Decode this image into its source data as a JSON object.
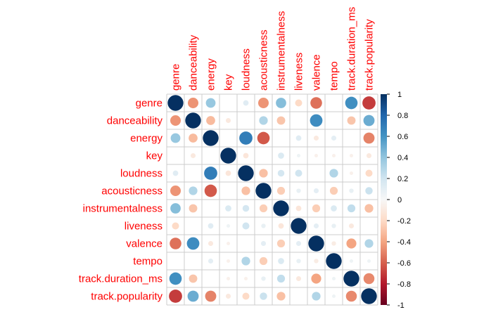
{
  "chart_data": {
    "type": "heatmap",
    "variables": [
      "genre",
      "danceability",
      "energy",
      "key",
      "loudness",
      "acousticness",
      "instrumentalness",
      "liveness",
      "valence",
      "tempo",
      "track.duration_ms",
      "track.popularity"
    ],
    "matrix": [
      [
        1.0,
        -0.45,
        0.38,
        0.0,
        0.12,
        -0.45,
        0.43,
        -0.2,
        -0.55,
        0.0,
        0.62,
        -0.7
      ],
      [
        -0.45,
        1.0,
        -0.32,
        -0.1,
        0.0,
        0.3,
        -0.28,
        0.0,
        0.63,
        0.0,
        -0.28,
        0.5
      ],
      [
        0.38,
        -0.32,
        1.0,
        0.0,
        0.7,
        -0.62,
        0.0,
        0.12,
        -0.1,
        0.1,
        0.0,
        -0.5
      ],
      [
        0.0,
        -0.1,
        0.0,
        1.0,
        -0.12,
        0.0,
        0.15,
        0.05,
        -0.05,
        -0.05,
        -0.05,
        -0.1
      ],
      [
        0.12,
        0.0,
        0.7,
        -0.12,
        1.0,
        -0.3,
        0.18,
        0.2,
        0.0,
        0.3,
        -0.05,
        -0.2
      ],
      [
        -0.45,
        0.3,
        -0.62,
        0.0,
        -0.3,
        1.0,
        -0.25,
        0.08,
        0.1,
        -0.25,
        0.08,
        0.22
      ],
      [
        0.43,
        -0.28,
        0.0,
        0.15,
        0.18,
        -0.25,
        1.0,
        -0.12,
        -0.25,
        0.15,
        0.25,
        -0.3
      ],
      [
        -0.2,
        0.0,
        0.12,
        0.05,
        0.2,
        0.08,
        -0.12,
        1.0,
        0.1,
        0.08,
        -0.1,
        0.0
      ],
      [
        -0.55,
        0.63,
        -0.1,
        -0.05,
        0.0,
        0.1,
        -0.25,
        0.1,
        1.0,
        -0.08,
        -0.4,
        0.3
      ],
      [
        0.0,
        0.0,
        0.1,
        -0.05,
        0.3,
        -0.25,
        0.15,
        0.08,
        -0.08,
        1.0,
        0.05,
        0.05
      ],
      [
        0.62,
        -0.28,
        0.0,
        -0.05,
        -0.05,
        0.08,
        0.25,
        -0.1,
        -0.4,
        0.05,
        1.0,
        -0.48
      ],
      [
        -0.7,
        0.5,
        -0.5,
        -0.1,
        -0.2,
        0.22,
        -0.3,
        0.0,
        0.3,
        0.05,
        -0.48,
        1.0
      ]
    ],
    "colorbar_ticks": [
      "1",
      "0.8",
      "0.6",
      "0.4",
      "0.2",
      "0",
      "-0.2",
      "-0.4",
      "-0.6",
      "-0.8",
      "-1"
    ],
    "color_range": [
      -1,
      1
    ],
    "colors": {
      "positive": "#053061",
      "neutral": "#f7f7f7",
      "negative": "#67001f",
      "label": "#ff0000",
      "grid": "#cccccc"
    },
    "grid": true,
    "legend": "right"
  }
}
